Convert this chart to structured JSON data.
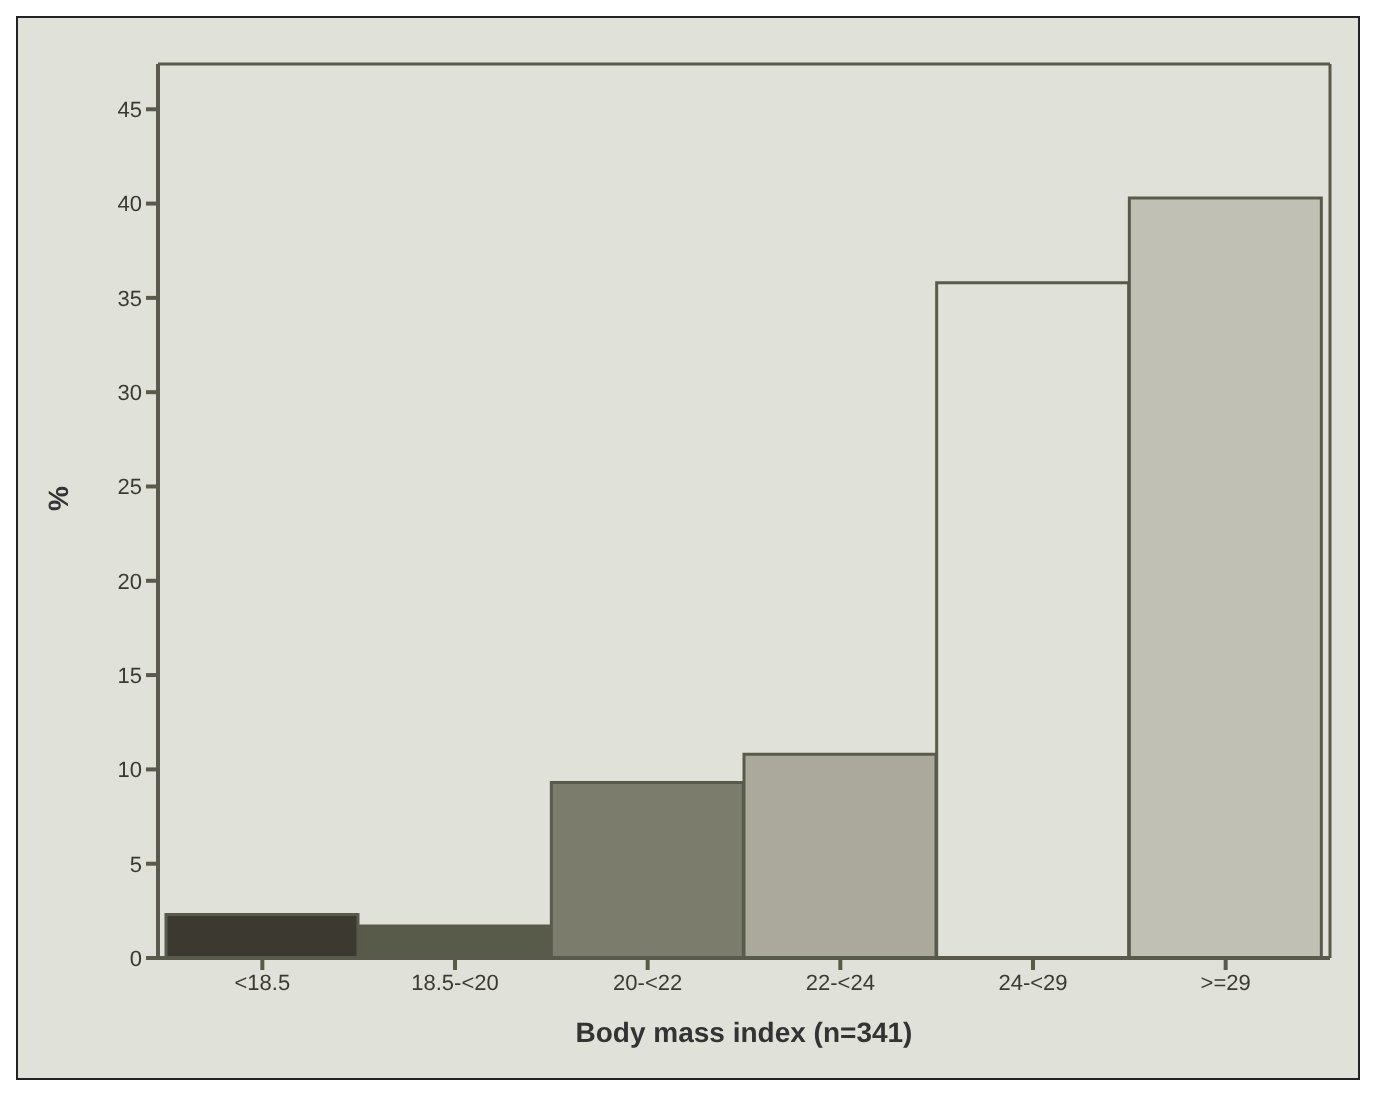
{
  "chart_data": {
    "type": "bar",
    "xlabel": "Body mass index (n=341)",
    "ylabel": "%",
    "categories": [
      "<18.5",
      "18.5-<20",
      "20-<22",
      "22-<24",
      "24-<29",
      ">=29"
    ],
    "values": [
      2.3,
      1.7,
      9.3,
      10.8,
      35.8,
      40.3
    ],
    "colors": [
      "#3c3a30",
      "#585a4a",
      "#7b7c6c",
      "#aaa99c",
      "#e0e1d9",
      "#c0c0b4"
    ],
    "ylim": [
      0,
      47.4
    ],
    "yticks": [
      0,
      5,
      10,
      15,
      20,
      25,
      30,
      35,
      40,
      45
    ],
    "grid": false,
    "legend": false
  }
}
